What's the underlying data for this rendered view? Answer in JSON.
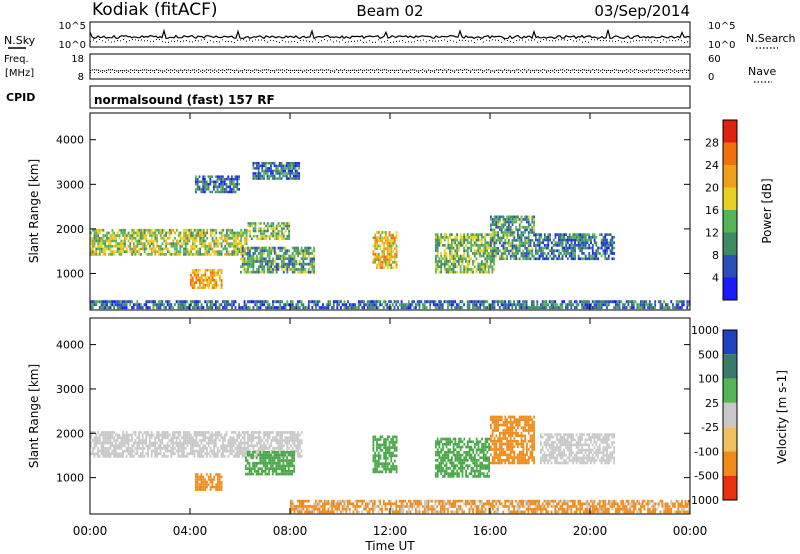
{
  "header": {
    "station": "Kodiak (fitACF)",
    "beam": "Beam 02",
    "date": "03/Sep/2014"
  },
  "noise_panel": {
    "left_label": "N.Sky",
    "right_label": "N.Search",
    "left_ticks": [
      "10^5",
      "10^0"
    ],
    "right_ticks": [
      "10^5",
      "10^0"
    ]
  },
  "freq_panel": {
    "left_label_1": "Freq.",
    "left_label_2": "[MHz]",
    "right_label": "Nave",
    "left_ticks": [
      "18",
      "8"
    ],
    "right_ticks": [
      "60",
      "0"
    ]
  },
  "cpid_panel": {
    "label": "CPID",
    "text": "normalsound (fast) 157 RF"
  },
  "x_axis": {
    "label": "Time UT",
    "ticks": [
      "00:00",
      "04:00",
      "08:00",
      "12:00",
      "16:00",
      "20:00",
      "00:00"
    ]
  },
  "colors": {
    "power": [
      "#1a1aff",
      "#2a50b8",
      "#3f8a64",
      "#55b455",
      "#e8d020",
      "#f0a018",
      "#f07010",
      "#e02010"
    ],
    "velocity_neg": "#f08a18",
    "velocity_mid": "#c8c8c8",
    "velocity_pos": "#48a848"
  },
  "chart_data": [
    {
      "type": "heatmap",
      "title": "",
      "xlabel": "Time UT",
      "ylabel": "Slant Range [km]",
      "xlim": [
        0,
        24
      ],
      "ylim": [
        180,
        4600
      ],
      "yticks": [
        "1000",
        "2000",
        "3000",
        "4000"
      ],
      "colorbar": {
        "label": "Power [dB]",
        "ticks": [
          "4",
          "8",
          "12",
          "16",
          "20",
          "24",
          "28"
        ],
        "range": [
          0,
          32
        ]
      },
      "regions": [
        {
          "t0": 0.0,
          "t1": 6.3,
          "r0": 1400,
          "r1": 2000,
          "level": 14
        },
        {
          "t0": 6.3,
          "t1": 8.0,
          "r0": 1750,
          "r1": 2150,
          "level": 12
        },
        {
          "t0": 4.0,
          "t1": 5.3,
          "r0": 650,
          "r1": 1100,
          "level": 20
        },
        {
          "t0": 4.2,
          "t1": 6.0,
          "r0": 2800,
          "r1": 3200,
          "level": 6
        },
        {
          "t0": 6.5,
          "t1": 8.4,
          "r0": 3100,
          "r1": 3500,
          "level": 6
        },
        {
          "t0": 6.0,
          "t1": 9.0,
          "r0": 1000,
          "r1": 1600,
          "level": 10
        },
        {
          "t0": 11.3,
          "t1": 12.3,
          "r0": 1100,
          "r1": 1950,
          "level": 18
        },
        {
          "t0": 13.8,
          "t1": 16.2,
          "r0": 1000,
          "r1": 1900,
          "level": 12
        },
        {
          "t0": 16.0,
          "t1": 17.8,
          "r0": 1300,
          "r1": 2300,
          "level": 9
        },
        {
          "t0": 17.8,
          "t1": 21.0,
          "r0": 1300,
          "r1": 1900,
          "level": 6
        },
        {
          "t0": 0.0,
          "t1": 24.0,
          "r0": 200,
          "r1": 400,
          "level": 6
        }
      ]
    },
    {
      "type": "heatmap",
      "title": "",
      "xlabel": "Time UT",
      "ylabel": "Slant Range [km]",
      "xlim": [
        0,
        24
      ],
      "ylim": [
        180,
        4600
      ],
      "yticks": [
        "1000",
        "2000",
        "3000",
        "4000"
      ],
      "colorbar": {
        "label": "Velocity [m s-1]",
        "ticks": [
          "1000",
          "500",
          "100",
          "25",
          "-25",
          "-100",
          "-500",
          "-1000"
        ]
      },
      "regions": [
        {
          "t0": 0.0,
          "t1": 8.5,
          "r0": 1450,
          "r1": 2050,
          "value": 0
        },
        {
          "t0": 4.2,
          "t1": 5.3,
          "r0": 700,
          "r1": 1100,
          "value": -200
        },
        {
          "t0": 6.2,
          "t1": 8.2,
          "r0": 1050,
          "r1": 1600,
          "value": 80
        },
        {
          "t0": 11.3,
          "t1": 12.3,
          "r0": 1100,
          "r1": 1950,
          "value": 120
        },
        {
          "t0": 13.8,
          "t1": 16.0,
          "r0": 1000,
          "r1": 1900,
          "value": 100
        },
        {
          "t0": 16.0,
          "t1": 17.8,
          "r0": 1300,
          "r1": 2400,
          "value": -150
        },
        {
          "t0": 18.0,
          "t1": 21.0,
          "r0": 1300,
          "r1": 2000,
          "value": 0
        },
        {
          "t0": 8.0,
          "t1": 24.0,
          "r0": 200,
          "r1": 500,
          "value": -60
        }
      ]
    }
  ]
}
